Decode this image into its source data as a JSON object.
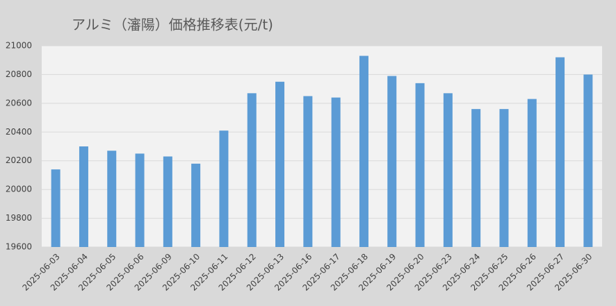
{
  "chart_data": {
    "type": "bar",
    "title": "アルミ（瀋陽）価格推移表(元/t)",
    "categories": [
      "2025-06-03",
      "2025-06-04",
      "2025-06-05",
      "2025-06-06",
      "2025-06-09",
      "2025-06-10",
      "2025-06-11",
      "2025-06-12",
      "2025-06-13",
      "2025-06-16",
      "2025-06-17",
      "2025-06-18",
      "2025-06-19",
      "2025-06-20",
      "2025-06-23",
      "2025-06-24",
      "2025-06-25",
      "2025-06-26",
      "2025-06-27",
      "2025-06-30"
    ],
    "values": [
      20140,
      20300,
      20270,
      20250,
      20230,
      20180,
      20410,
      20670,
      20750,
      20650,
      20640,
      20930,
      20790,
      20740,
      20670,
      20560,
      20560,
      20630,
      20920,
      20800
    ],
    "color": "#5b9bd5",
    "ylim": [
      19600,
      21000
    ],
    "yticks": [
      19600,
      19800,
      20000,
      20200,
      20400,
      20600,
      20800,
      21000
    ],
    "grid": true
  }
}
